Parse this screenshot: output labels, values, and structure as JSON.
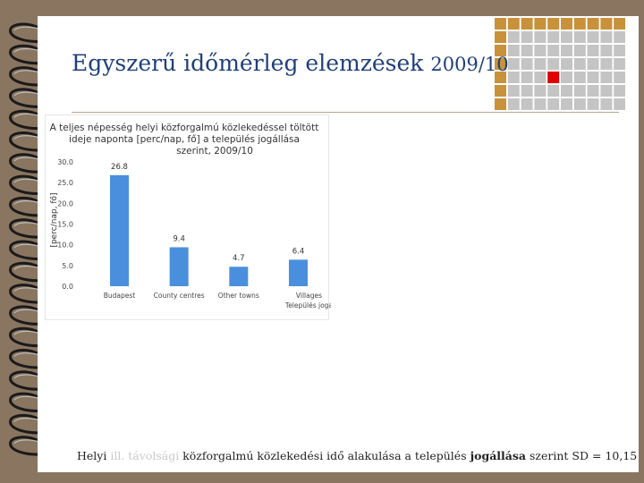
{
  "slide": {
    "title": "Egyszerű időmérleg elemzések",
    "title_year": "2009/10",
    "caption": {
      "part1": "Helyi",
      "part2": "ill. távolsági",
      "part3": "közforgalmú közlekedési idő alakulása a település",
      "part4": "jogállása",
      "part5": "szerint SD = 10,15"
    }
  },
  "colors": {
    "background": "#8a7560",
    "title": "#1f3f7a",
    "bar": "#4a8fdd",
    "grid_gold": "#c8913a",
    "grid_grey": "#c4c4c4",
    "grid_accent": "#e00000"
  },
  "chart_data": {
    "type": "bar",
    "title": "A teljes népesség helyi közforgalmú közlekedéssel töltött ideje naponta [perc/nap, fő] a település jogállása szerint, 2009/10",
    "ylabel": "[perc/nap, fő]",
    "xlabel": "",
    "categories": [
      "Budapest",
      "County centres",
      "Other towns",
      "Villages\nTelepülés joga"
    ],
    "values": [
      26.8,
      9.4,
      4.7,
      6.4
    ],
    "data_labels": [
      "26.8",
      "9.4",
      "4.7",
      "6.4"
    ],
    "ylim": [
      0,
      30
    ],
    "yticks": [
      "0.0",
      "5.0",
      "10.0",
      "15.0",
      "20.0",
      "25.0",
      "30.0"
    ],
    "grid": false,
    "legend": "none"
  }
}
